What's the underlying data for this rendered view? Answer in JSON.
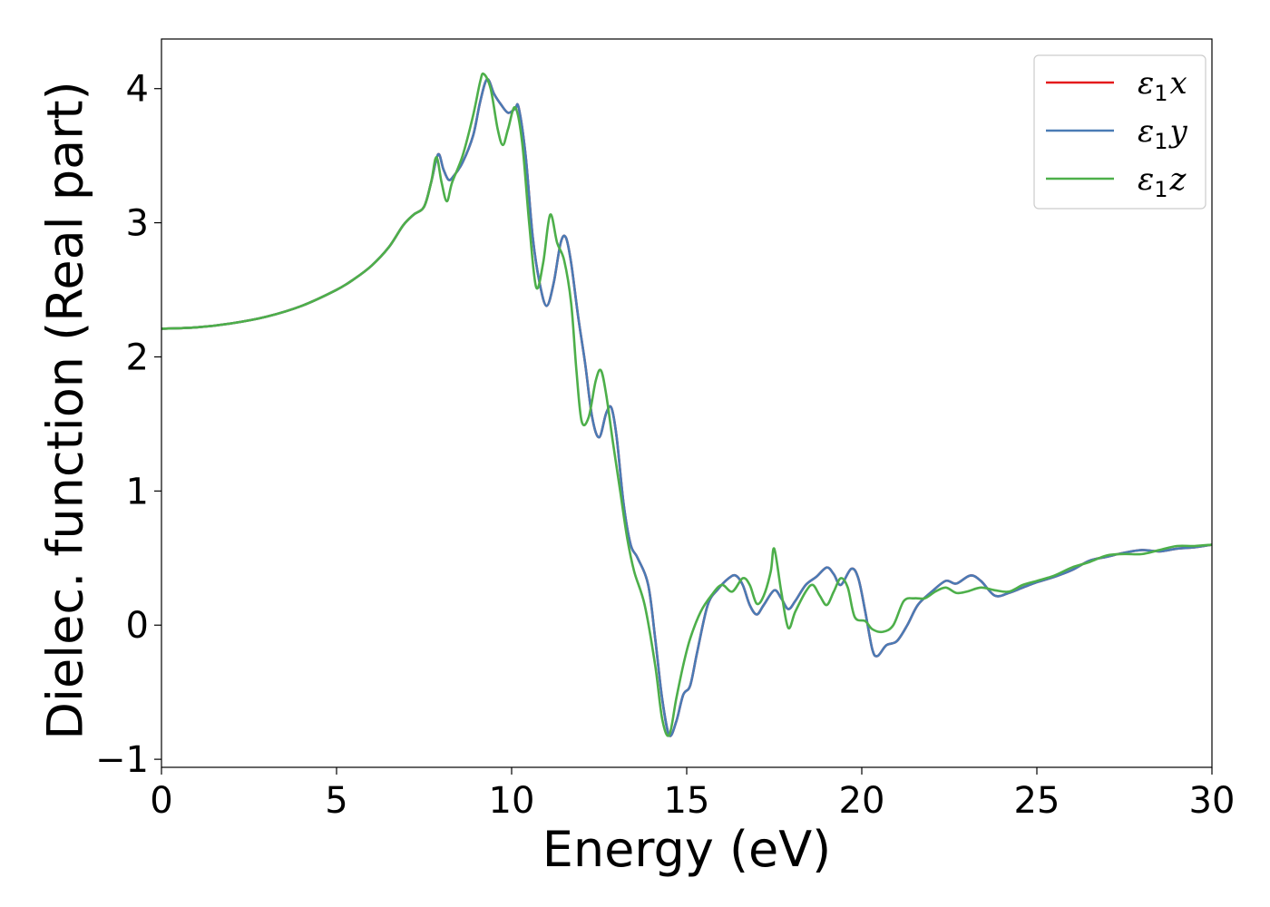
{
  "chart_data": {
    "type": "line",
    "title": "",
    "xlabel": "Energy (eV)",
    "ylabel": "Dielec. function (Real part)",
    "xlim": [
      0,
      30
    ],
    "ylim": [
      -1.06,
      4.37
    ],
    "xticks": [
      0,
      5,
      10,
      15,
      20,
      25,
      30
    ],
    "xtick_labels": [
      "0",
      "5",
      "10",
      "15",
      "20",
      "25",
      "30"
    ],
    "yticks": [
      -1,
      0,
      1,
      2,
      3,
      4
    ],
    "ytick_labels": [
      "−1",
      "0",
      "1",
      "2",
      "3",
      "4"
    ],
    "grid": false,
    "legend_position": "top-right",
    "series": [
      {
        "name": "ε₁x",
        "symbol": "ε",
        "subscript": "1",
        "axis": "x",
        "color": "#e41a1c",
        "points": [
          [
            0,
            2.21
          ],
          [
            1,
            2.22
          ],
          [
            2,
            2.25
          ],
          [
            3,
            2.3
          ],
          [
            4,
            2.38
          ],
          [
            5,
            2.5
          ],
          [
            5.5,
            2.58
          ],
          [
            6,
            2.68
          ],
          [
            6.5,
            2.82
          ],
          [
            6.9,
            2.98
          ],
          [
            7.2,
            3.06
          ],
          [
            7.5,
            3.12
          ],
          [
            7.7,
            3.3
          ],
          [
            7.9,
            3.51
          ],
          [
            8.05,
            3.4
          ],
          [
            8.2,
            3.32
          ],
          [
            8.35,
            3.35
          ],
          [
            8.6,
            3.45
          ],
          [
            8.9,
            3.65
          ],
          [
            9.1,
            3.9
          ],
          [
            9.3,
            4.07
          ],
          [
            9.5,
            3.96
          ],
          [
            9.7,
            3.88
          ],
          [
            9.9,
            3.82
          ],
          [
            10.1,
            3.85
          ],
          [
            10.2,
            3.86
          ],
          [
            10.4,
            3.5
          ],
          [
            10.6,
            2.9
          ],
          [
            10.8,
            2.55
          ],
          [
            11.0,
            2.38
          ],
          [
            11.2,
            2.55
          ],
          [
            11.4,
            2.85
          ],
          [
            11.55,
            2.89
          ],
          [
            11.7,
            2.7
          ],
          [
            11.9,
            2.3
          ],
          [
            12.1,
            1.95
          ],
          [
            12.3,
            1.55
          ],
          [
            12.5,
            1.4
          ],
          [
            12.7,
            1.58
          ],
          [
            12.85,
            1.62
          ],
          [
            13.0,
            1.4
          ],
          [
            13.2,
            0.9
          ],
          [
            13.4,
            0.6
          ],
          [
            13.6,
            0.5
          ],
          [
            13.9,
            0.3
          ],
          [
            14.1,
            -0.1
          ],
          [
            14.3,
            -0.55
          ],
          [
            14.5,
            -0.82
          ],
          [
            14.7,
            -0.72
          ],
          [
            14.9,
            -0.52
          ],
          [
            15.1,
            -0.45
          ],
          [
            15.3,
            -0.2
          ],
          [
            15.6,
            0.15
          ],
          [
            15.9,
            0.27
          ],
          [
            16.2,
            0.35
          ],
          [
            16.4,
            0.37
          ],
          [
            16.6,
            0.3
          ],
          [
            16.8,
            0.15
          ],
          [
            17.0,
            0.08
          ],
          [
            17.2,
            0.15
          ],
          [
            17.5,
            0.26
          ],
          [
            17.7,
            0.2
          ],
          [
            17.9,
            0.12
          ],
          [
            18.1,
            0.18
          ],
          [
            18.4,
            0.3
          ],
          [
            18.7,
            0.36
          ],
          [
            19.0,
            0.43
          ],
          [
            19.2,
            0.38
          ],
          [
            19.4,
            0.3
          ],
          [
            19.7,
            0.42
          ],
          [
            19.9,
            0.35
          ],
          [
            20.1,
            0.1
          ],
          [
            20.3,
            -0.18
          ],
          [
            20.45,
            -0.23
          ],
          [
            20.7,
            -0.15
          ],
          [
            21.0,
            -0.12
          ],
          [
            21.3,
            0.0
          ],
          [
            21.6,
            0.15
          ],
          [
            22.0,
            0.25
          ],
          [
            22.4,
            0.33
          ],
          [
            22.7,
            0.31
          ],
          [
            23.1,
            0.37
          ],
          [
            23.4,
            0.33
          ],
          [
            23.8,
            0.22
          ],
          [
            24.2,
            0.24
          ],
          [
            24.6,
            0.28
          ],
          [
            25.0,
            0.32
          ],
          [
            25.5,
            0.36
          ],
          [
            26.0,
            0.41
          ],
          [
            26.5,
            0.48
          ],
          [
            27.0,
            0.51
          ],
          [
            27.5,
            0.54
          ],
          [
            28.0,
            0.56
          ],
          [
            28.5,
            0.55
          ],
          [
            29.0,
            0.57
          ],
          [
            29.5,
            0.58
          ],
          [
            30.0,
            0.6
          ]
        ]
      },
      {
        "name": "ε₁y",
        "symbol": "ε",
        "subscript": "1",
        "axis": "y",
        "color": "#4a7bb5",
        "points": [
          [
            0,
            2.21
          ],
          [
            1,
            2.22
          ],
          [
            2,
            2.25
          ],
          [
            3,
            2.3
          ],
          [
            4,
            2.38
          ],
          [
            5,
            2.5
          ],
          [
            5.5,
            2.58
          ],
          [
            6,
            2.68
          ],
          [
            6.5,
            2.82
          ],
          [
            6.9,
            2.98
          ],
          [
            7.2,
            3.06
          ],
          [
            7.5,
            3.12
          ],
          [
            7.7,
            3.3
          ],
          [
            7.9,
            3.51
          ],
          [
            8.05,
            3.4
          ],
          [
            8.2,
            3.32
          ],
          [
            8.35,
            3.35
          ],
          [
            8.6,
            3.45
          ],
          [
            8.9,
            3.65
          ],
          [
            9.1,
            3.9
          ],
          [
            9.3,
            4.07
          ],
          [
            9.5,
            3.96
          ],
          [
            9.7,
            3.88
          ],
          [
            9.9,
            3.82
          ],
          [
            10.1,
            3.85
          ],
          [
            10.2,
            3.86
          ],
          [
            10.4,
            3.5
          ],
          [
            10.6,
            2.9
          ],
          [
            10.8,
            2.55
          ],
          [
            11.0,
            2.38
          ],
          [
            11.2,
            2.55
          ],
          [
            11.4,
            2.85
          ],
          [
            11.55,
            2.89
          ],
          [
            11.7,
            2.7
          ],
          [
            11.9,
            2.3
          ],
          [
            12.1,
            1.95
          ],
          [
            12.3,
            1.55
          ],
          [
            12.5,
            1.4
          ],
          [
            12.7,
            1.58
          ],
          [
            12.85,
            1.62
          ],
          [
            13.0,
            1.4
          ],
          [
            13.2,
            0.9
          ],
          [
            13.4,
            0.6
          ],
          [
            13.6,
            0.5
          ],
          [
            13.9,
            0.3
          ],
          [
            14.1,
            -0.1
          ],
          [
            14.3,
            -0.55
          ],
          [
            14.5,
            -0.82
          ],
          [
            14.7,
            -0.72
          ],
          [
            14.9,
            -0.52
          ],
          [
            15.1,
            -0.45
          ],
          [
            15.3,
            -0.2
          ],
          [
            15.6,
            0.15
          ],
          [
            15.9,
            0.27
          ],
          [
            16.2,
            0.35
          ],
          [
            16.4,
            0.37
          ],
          [
            16.6,
            0.3
          ],
          [
            16.8,
            0.15
          ],
          [
            17.0,
            0.08
          ],
          [
            17.2,
            0.15
          ],
          [
            17.5,
            0.26
          ],
          [
            17.7,
            0.2
          ],
          [
            17.9,
            0.12
          ],
          [
            18.1,
            0.18
          ],
          [
            18.4,
            0.3
          ],
          [
            18.7,
            0.36
          ],
          [
            19.0,
            0.43
          ],
          [
            19.2,
            0.38
          ],
          [
            19.4,
            0.3
          ],
          [
            19.7,
            0.42
          ],
          [
            19.9,
            0.35
          ],
          [
            20.1,
            0.1
          ],
          [
            20.3,
            -0.18
          ],
          [
            20.45,
            -0.23
          ],
          [
            20.7,
            -0.15
          ],
          [
            21.0,
            -0.12
          ],
          [
            21.3,
            0.0
          ],
          [
            21.6,
            0.15
          ],
          [
            22.0,
            0.25
          ],
          [
            22.4,
            0.33
          ],
          [
            22.7,
            0.31
          ],
          [
            23.1,
            0.37
          ],
          [
            23.4,
            0.33
          ],
          [
            23.8,
            0.22
          ],
          [
            24.2,
            0.24
          ],
          [
            24.6,
            0.28
          ],
          [
            25.0,
            0.32
          ],
          [
            25.5,
            0.36
          ],
          [
            26.0,
            0.41
          ],
          [
            26.5,
            0.48
          ],
          [
            27.0,
            0.51
          ],
          [
            27.5,
            0.54
          ],
          [
            28.0,
            0.56
          ],
          [
            28.5,
            0.55
          ],
          [
            29.0,
            0.57
          ],
          [
            29.5,
            0.58
          ],
          [
            30.0,
            0.6
          ]
        ]
      },
      {
        "name": "ε₁z",
        "symbol": "ε",
        "subscript": "1",
        "axis": "z",
        "color": "#4daf4a",
        "points": [
          [
            0,
            2.21
          ],
          [
            1,
            2.22
          ],
          [
            2,
            2.25
          ],
          [
            3,
            2.3
          ],
          [
            4,
            2.38
          ],
          [
            5,
            2.5
          ],
          [
            5.5,
            2.58
          ],
          [
            6,
            2.68
          ],
          [
            6.5,
            2.82
          ],
          [
            6.9,
            2.98
          ],
          [
            7.2,
            3.06
          ],
          [
            7.5,
            3.12
          ],
          [
            7.7,
            3.3
          ],
          [
            7.85,
            3.49
          ],
          [
            8.0,
            3.3
          ],
          [
            8.15,
            3.16
          ],
          [
            8.3,
            3.3
          ],
          [
            8.6,
            3.5
          ],
          [
            8.9,
            3.8
          ],
          [
            9.1,
            4.05
          ],
          [
            9.2,
            4.11
          ],
          [
            9.4,
            4.0
          ],
          [
            9.6,
            3.7
          ],
          [
            9.75,
            3.58
          ],
          [
            9.9,
            3.7
          ],
          [
            10.1,
            3.86
          ],
          [
            10.3,
            3.6
          ],
          [
            10.5,
            3.0
          ],
          [
            10.7,
            2.52
          ],
          [
            10.9,
            2.7
          ],
          [
            11.1,
            3.06
          ],
          [
            11.3,
            2.85
          ],
          [
            11.5,
            2.72
          ],
          [
            11.7,
            2.4
          ],
          [
            11.85,
            1.9
          ],
          [
            12.0,
            1.52
          ],
          [
            12.2,
            1.55
          ],
          [
            12.4,
            1.82
          ],
          [
            12.55,
            1.9
          ],
          [
            12.7,
            1.72
          ],
          [
            12.9,
            1.35
          ],
          [
            13.1,
            1.0
          ],
          [
            13.3,
            0.65
          ],
          [
            13.5,
            0.4
          ],
          [
            13.8,
            0.15
          ],
          [
            14.1,
            -0.3
          ],
          [
            14.3,
            -0.7
          ],
          [
            14.5,
            -0.82
          ],
          [
            14.7,
            -0.55
          ],
          [
            14.9,
            -0.3
          ],
          [
            15.1,
            -0.1
          ],
          [
            15.4,
            0.1
          ],
          [
            15.7,
            0.22
          ],
          [
            16.0,
            0.3
          ],
          [
            16.3,
            0.25
          ],
          [
            16.6,
            0.35
          ],
          [
            16.8,
            0.3
          ],
          [
            17.0,
            0.16
          ],
          [
            17.2,
            0.22
          ],
          [
            17.4,
            0.4
          ],
          [
            17.5,
            0.57
          ],
          [
            17.7,
            0.25
          ],
          [
            17.9,
            -0.02
          ],
          [
            18.1,
            0.1
          ],
          [
            18.4,
            0.25
          ],
          [
            18.6,
            0.3
          ],
          [
            18.8,
            0.22
          ],
          [
            19.0,
            0.15
          ],
          [
            19.2,
            0.25
          ],
          [
            19.4,
            0.35
          ],
          [
            19.6,
            0.28
          ],
          [
            19.8,
            0.06
          ],
          [
            20.1,
            0.03
          ],
          [
            20.3,
            -0.03
          ],
          [
            20.6,
            -0.05
          ],
          [
            20.9,
            0.0
          ],
          [
            21.2,
            0.18
          ],
          [
            21.5,
            0.2
          ],
          [
            21.8,
            0.2
          ],
          [
            22.1,
            0.25
          ],
          [
            22.4,
            0.28
          ],
          [
            22.7,
            0.24
          ],
          [
            23.0,
            0.25
          ],
          [
            23.4,
            0.28
          ],
          [
            23.8,
            0.26
          ],
          [
            24.2,
            0.25
          ],
          [
            24.6,
            0.3
          ],
          [
            25.0,
            0.33
          ],
          [
            25.5,
            0.37
          ],
          [
            26.0,
            0.43
          ],
          [
            26.5,
            0.47
          ],
          [
            27.0,
            0.52
          ],
          [
            27.5,
            0.53
          ],
          [
            28.0,
            0.53
          ],
          [
            28.5,
            0.56
          ],
          [
            29.0,
            0.59
          ],
          [
            29.5,
            0.59
          ],
          [
            30.0,
            0.6
          ]
        ]
      }
    ]
  }
}
